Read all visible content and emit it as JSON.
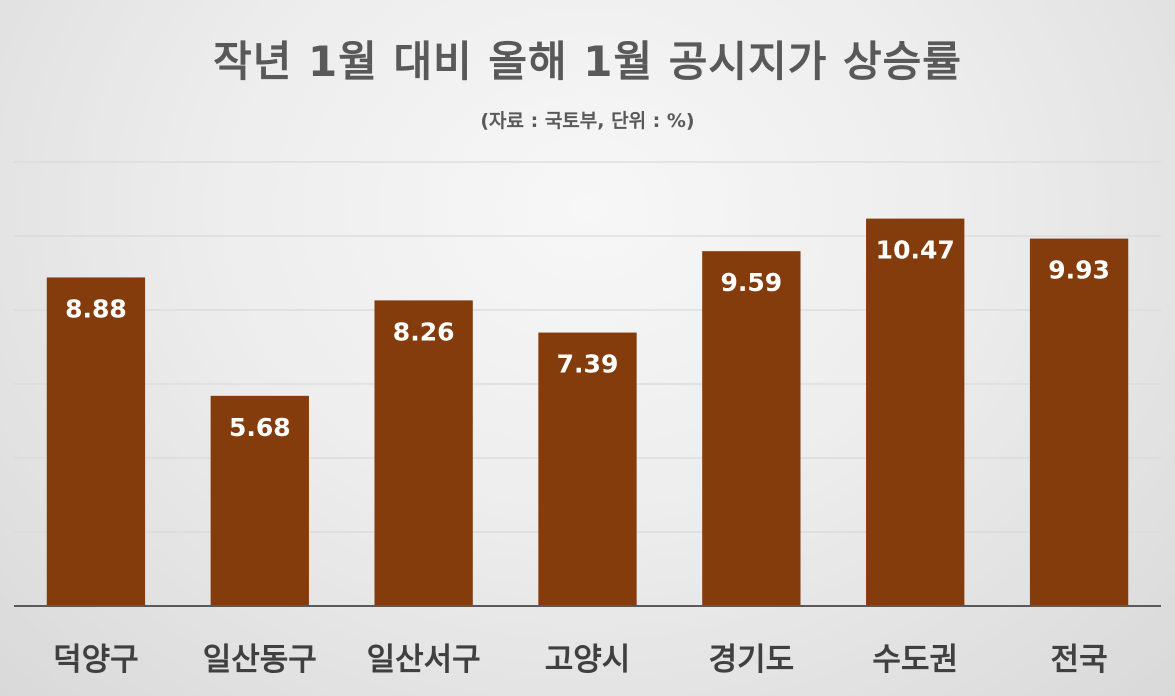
{
  "chart_data": {
    "type": "bar",
    "title": "작년 1월 대비 올해 1월 공시지가 상승률",
    "subtitle": "(자료 : 국토부, 단위 : %)",
    "categories": [
      "덕양구",
      "일산동구",
      "일산서구",
      "고양시",
      "경기도",
      "수도권",
      "전국"
    ],
    "values": [
      8.88,
      5.68,
      8.26,
      7.39,
      9.59,
      10.47,
      9.93
    ],
    "value_labels": [
      "8.88",
      "5.68",
      "8.26",
      "7.39",
      "9.59",
      "10.47",
      "9.93"
    ],
    "xlabel": "",
    "ylabel": "",
    "ylim": [
      0,
      12
    ],
    "grid": true,
    "legend": "none",
    "bar_color": "#843c0c",
    "grid_color": "#d9d9d9",
    "axis_color": "#595959",
    "label_color": "#ffffff",
    "category_color": "#404040"
  }
}
